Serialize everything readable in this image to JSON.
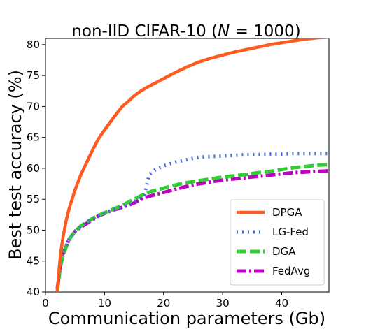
{
  "chart_data": {
    "type": "line",
    "title_prefix": "non-IID CIFAR-10 (",
    "title_var": "N",
    "title_suffix": " = 1000)",
    "xlabel": "Communication parameters (Gb)",
    "ylabel": "Best test accuracy (%)",
    "xlim": [
      0,
      48
    ],
    "ylim": [
      40,
      81
    ],
    "xticks": [
      0,
      10,
      20,
      30,
      40
    ],
    "yticks": [
      40,
      45,
      50,
      55,
      60,
      65,
      70,
      75,
      80
    ],
    "grid": false,
    "legend_position": "lower-right",
    "series": [
      {
        "name": "DPGA",
        "color": "#ff5a1f",
        "style": "solid",
        "points": [
          [
            2.0,
            40.0
          ],
          [
            2.3,
            43.5
          ],
          [
            2.6,
            46.5
          ],
          [
            3.0,
            49.0
          ],
          [
            3.5,
            51.5
          ],
          [
            4.0,
            53.5
          ],
          [
            5.0,
            56.5
          ],
          [
            6.0,
            59.0
          ],
          [
            7.0,
            61.0
          ],
          [
            8.0,
            63.0
          ],
          [
            9.0,
            64.8
          ],
          [
            10.0,
            66.2
          ],
          [
            11.0,
            67.5
          ],
          [
            12.0,
            68.8
          ],
          [
            13.0,
            70.0
          ],
          [
            14.0,
            70.8
          ],
          [
            15.0,
            71.7
          ],
          [
            16.0,
            72.4
          ],
          [
            17.0,
            73.0
          ],
          [
            18.0,
            73.5
          ],
          [
            19.0,
            74.0
          ],
          [
            20.0,
            74.5
          ],
          [
            22.0,
            75.5
          ],
          [
            24.0,
            76.4
          ],
          [
            26.0,
            77.2
          ],
          [
            28.0,
            77.8
          ],
          [
            30.0,
            78.3
          ],
          [
            32.0,
            78.8
          ],
          [
            34.0,
            79.2
          ],
          [
            36.0,
            79.6
          ],
          [
            38.0,
            80.0
          ],
          [
            40.0,
            80.3
          ],
          [
            42.0,
            80.6
          ],
          [
            44.0,
            80.9
          ],
          [
            46.0,
            81.1
          ],
          [
            48.0,
            81.2
          ]
        ]
      },
      {
        "name": "LG-Fed",
        "color": "#4169e1",
        "style": "dotted",
        "points": [
          [
            2.0,
            40.5
          ],
          [
            2.5,
            44.5
          ],
          [
            3.0,
            46.5
          ],
          [
            4.0,
            48.5
          ],
          [
            5.0,
            49.8
          ],
          [
            6.0,
            50.6
          ],
          [
            7.0,
            51.3
          ],
          [
            8.0,
            51.9
          ],
          [
            9.0,
            52.3
          ],
          [
            10.0,
            52.8
          ],
          [
            11.0,
            53.1
          ],
          [
            12.0,
            53.4
          ],
          [
            13.0,
            53.7
          ],
          [
            14.0,
            54.2
          ],
          [
            15.0,
            54.6
          ],
          [
            16.0,
            55.2
          ],
          [
            16.8,
            55.8
          ],
          [
            17.2,
            57.5
          ],
          [
            17.6,
            59.0
          ],
          [
            18.5,
            59.7
          ],
          [
            20.0,
            60.4
          ],
          [
            22.0,
            61.0
          ],
          [
            24.0,
            61.4
          ],
          [
            26.0,
            61.8
          ],
          [
            28.0,
            61.9
          ],
          [
            30.0,
            62.0
          ],
          [
            32.0,
            62.1
          ],
          [
            34.0,
            62.2
          ],
          [
            36.0,
            62.2
          ],
          [
            38.0,
            62.3
          ],
          [
            40.0,
            62.3
          ],
          [
            42.0,
            62.4
          ],
          [
            44.0,
            62.4
          ],
          [
            46.0,
            62.4
          ],
          [
            48.0,
            62.4
          ]
        ]
      },
      {
        "name": "DGA",
        "color": "#32cd32",
        "style": "dashed",
        "points": [
          [
            2.0,
            40.0
          ],
          [
            2.5,
            44.0
          ],
          [
            3.0,
            46.0
          ],
          [
            4.0,
            48.5
          ],
          [
            5.0,
            49.8
          ],
          [
            6.0,
            50.7
          ],
          [
            7.0,
            51.3
          ],
          [
            8.0,
            51.9
          ],
          [
            9.0,
            52.4
          ],
          [
            10.0,
            52.8
          ],
          [
            11.0,
            53.2
          ],
          [
            12.0,
            53.6
          ],
          [
            13.0,
            54.0
          ],
          [
            14.0,
            54.5
          ],
          [
            15.0,
            55.0
          ],
          [
            16.0,
            55.5
          ],
          [
            17.0,
            55.9
          ],
          [
            18.0,
            56.3
          ],
          [
            20.0,
            56.8
          ],
          [
            22.0,
            57.3
          ],
          [
            24.0,
            57.7
          ],
          [
            26.0,
            58.0
          ],
          [
            28.0,
            58.3
          ],
          [
            30.0,
            58.6
          ],
          [
            32.0,
            58.8
          ],
          [
            34.0,
            59.0
          ],
          [
            36.0,
            59.3
          ],
          [
            38.0,
            59.5
          ],
          [
            40.0,
            59.8
          ],
          [
            42.0,
            60.1
          ],
          [
            44.0,
            60.3
          ],
          [
            46.0,
            60.5
          ],
          [
            48.0,
            60.6
          ]
        ]
      },
      {
        "name": "FedAvg",
        "color": "#c000c0",
        "style": "dashdot",
        "points": [
          [
            2.0,
            40.5
          ],
          [
            2.5,
            44.0
          ],
          [
            3.0,
            46.2
          ],
          [
            4.0,
            48.5
          ],
          [
            5.0,
            49.8
          ],
          [
            6.0,
            50.5
          ],
          [
            7.0,
            51.1
          ],
          [
            8.0,
            51.7
          ],
          [
            9.0,
            52.3
          ],
          [
            10.0,
            52.7
          ],
          [
            11.0,
            53.1
          ],
          [
            12.0,
            53.4
          ],
          [
            13.0,
            53.7
          ],
          [
            14.0,
            54.0
          ],
          [
            15.0,
            54.4
          ],
          [
            16.0,
            54.9
          ],
          [
            17.0,
            55.3
          ],
          [
            18.0,
            55.6
          ],
          [
            20.0,
            56.1
          ],
          [
            22.0,
            56.6
          ],
          [
            24.0,
            57.1
          ],
          [
            26.0,
            57.5
          ],
          [
            28.0,
            57.8
          ],
          [
            30.0,
            58.1
          ],
          [
            32.0,
            58.3
          ],
          [
            34.0,
            58.5
          ],
          [
            36.0,
            58.7
          ],
          [
            38.0,
            58.9
          ],
          [
            40.0,
            59.1
          ],
          [
            42.0,
            59.3
          ],
          [
            44.0,
            59.4
          ],
          [
            46.0,
            59.5
          ],
          [
            48.0,
            59.6
          ]
        ]
      }
    ]
  }
}
